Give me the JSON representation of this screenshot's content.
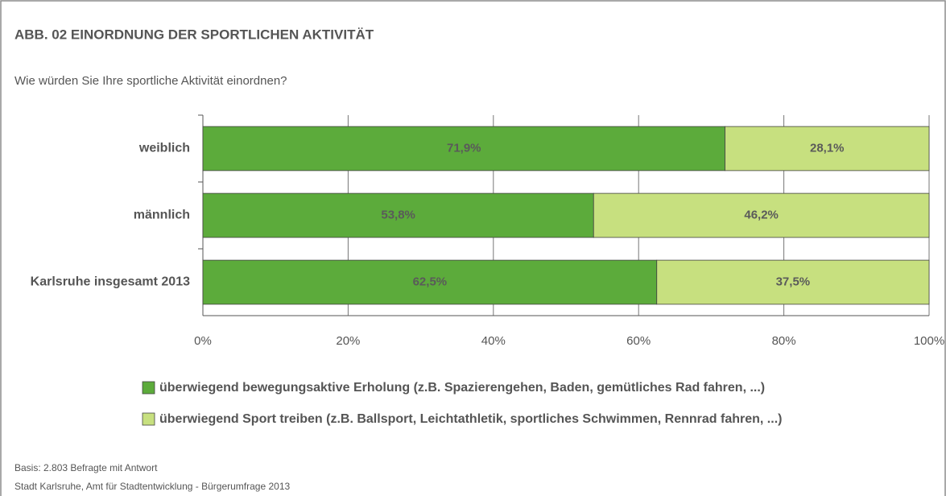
{
  "chart_data": {
    "type": "stacked-bar-horizontal",
    "title": "ABB. 02 EINORDNUNG DER SPORTLICHEN AKTIVITÄT",
    "subtitle": "Wie würden Sie Ihre sportliche Aktivität einordnen?",
    "categories": [
      "weiblich",
      "männlich",
      "Karlsruhe insgesamt 2013"
    ],
    "series": [
      {
        "name": "überwiegend bewegungsaktive Erholung (z.B. Spazierengehen, Baden, gemütliches Rad fahren, ...)",
        "color": "#5cab3b",
        "values": [
          71.9,
          53.8,
          62.5
        ],
        "value_labels": [
          "71,9%",
          "53,8%",
          "62,5%"
        ]
      },
      {
        "name": "überwiegend Sport treiben (z.B. Ballsport, Leichtathletik, sportliches Schwimmen, Rennrad fahren, ...)",
        "color": "#c7e07f",
        "values": [
          28.1,
          46.2,
          37.5
        ],
        "value_labels": [
          "28,1%",
          "46,2%",
          "37,5%"
        ]
      }
    ],
    "xlim": [
      0,
      100
    ],
    "xticks": [
      {
        "value": 0,
        "label": "0%"
      },
      {
        "value": 20,
        "label": "20%"
      },
      {
        "value": 40,
        "label": "40%"
      },
      {
        "value": 60,
        "label": "60%"
      },
      {
        "value": 80,
        "label": "80%"
      },
      {
        "value": 100,
        "label": "100%"
      }
    ],
    "grid": true,
    "notes": [
      "Basis: 2.803 Befragte mit Antwort",
      "Stadt Karlsruhe, Amt für Stadtentwicklung - Bürgerumfrage 2013"
    ]
  }
}
